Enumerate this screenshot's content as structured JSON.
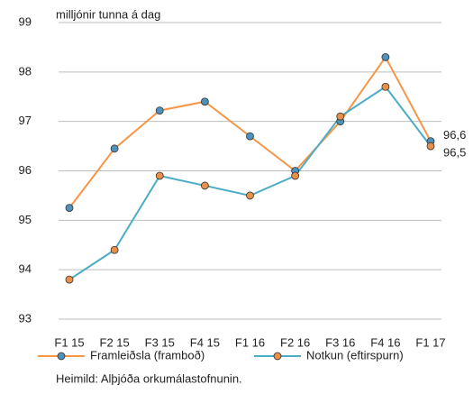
{
  "chart_data": {
    "type": "line",
    "y_label": "milljónir tunna á dag",
    "source": "Heimild: Alþjóða orkumálastofnunin.",
    "categories": [
      "F1 15",
      "F2 15",
      "F3 15",
      "F4 15",
      "F1 16",
      "F2 16",
      "F3 16",
      "F4 16",
      "F1 17"
    ],
    "series": [
      {
        "name": "Framleiðsla (framboð)",
        "color": "#f79646",
        "marker_color": "#4f91b8",
        "values": [
          95.25,
          96.45,
          97.22,
          97.4,
          96.7,
          96.0,
          97.0,
          98.3,
          96.6
        ],
        "value_labels": [
          null,
          null,
          null,
          null,
          null,
          null,
          null,
          null,
          "96,6"
        ]
      },
      {
        "name": "Notkun (eftirspurn)",
        "color": "#4bacc6",
        "marker_color": "#e8904a",
        "values": [
          93.8,
          94.4,
          95.9,
          95.7,
          95.5,
          95.9,
          97.1,
          97.7,
          96.5
        ],
        "value_labels": [
          null,
          null,
          null,
          null,
          null,
          null,
          null,
          null,
          "96,5"
        ]
      }
    ],
    "ylim": [
      93,
      99
    ],
    "yticks": [
      93,
      94,
      95,
      96,
      97,
      98,
      99
    ],
    "grid": true
  }
}
